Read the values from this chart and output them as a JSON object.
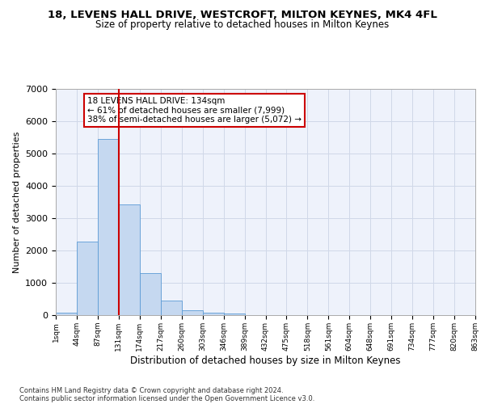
{
  "title1": "18, LEVENS HALL DRIVE, WESTCROFT, MILTON KEYNES, MK4 4FL",
  "title2": "Size of property relative to detached houses in Milton Keynes",
  "xlabel": "Distribution of detached houses by size in Milton Keynes",
  "ylabel": "Number of detached properties",
  "footnote1": "Contains HM Land Registry data © Crown copyright and database right 2024.",
  "footnote2": "Contains public sector information licensed under the Open Government Licence v3.0.",
  "bar_color": "#c5d8f0",
  "bar_edge_color": "#5b9bd5",
  "grid_color": "#d0d8e8",
  "background_color": "#eef2fb",
  "vline_color": "#cc0000",
  "vline_x": 3.0,
  "annotation_text": "18 LEVENS HALL DRIVE: 134sqm\n← 61% of detached houses are smaller (7,999)\n38% of semi-detached houses are larger (5,072) →",
  "annotation_box_color": "#ffffff",
  "annotation_box_edge": "#cc0000",
  "ylim": [
    0,
    7000
  ],
  "yticks": [
    0,
    1000,
    2000,
    3000,
    4000,
    5000,
    6000,
    7000
  ],
  "bin_labels": [
    "1sqm",
    "44sqm",
    "87sqm",
    "131sqm",
    "174sqm",
    "217sqm",
    "260sqm",
    "303sqm",
    "346sqm",
    "389sqm",
    "432sqm",
    "475sqm",
    "518sqm",
    "561sqm",
    "604sqm",
    "648sqm",
    "691sqm",
    "734sqm",
    "777sqm",
    "820sqm",
    "863sqm"
  ],
  "bar_heights": [
    75,
    2270,
    5460,
    3430,
    1300,
    460,
    150,
    80,
    45,
    0,
    0,
    0,
    0,
    0,
    0,
    0,
    0,
    0,
    0,
    0
  ],
  "n_bins": 20,
  "title1_fontsize": 9.5,
  "title2_fontsize": 8.5,
  "ylabel_fontsize": 8,
  "xlabel_fontsize": 8.5,
  "ytick_fontsize": 8,
  "xtick_fontsize": 6.5,
  "footnote_fontsize": 6.0,
  "annotation_fontsize": 7.5
}
